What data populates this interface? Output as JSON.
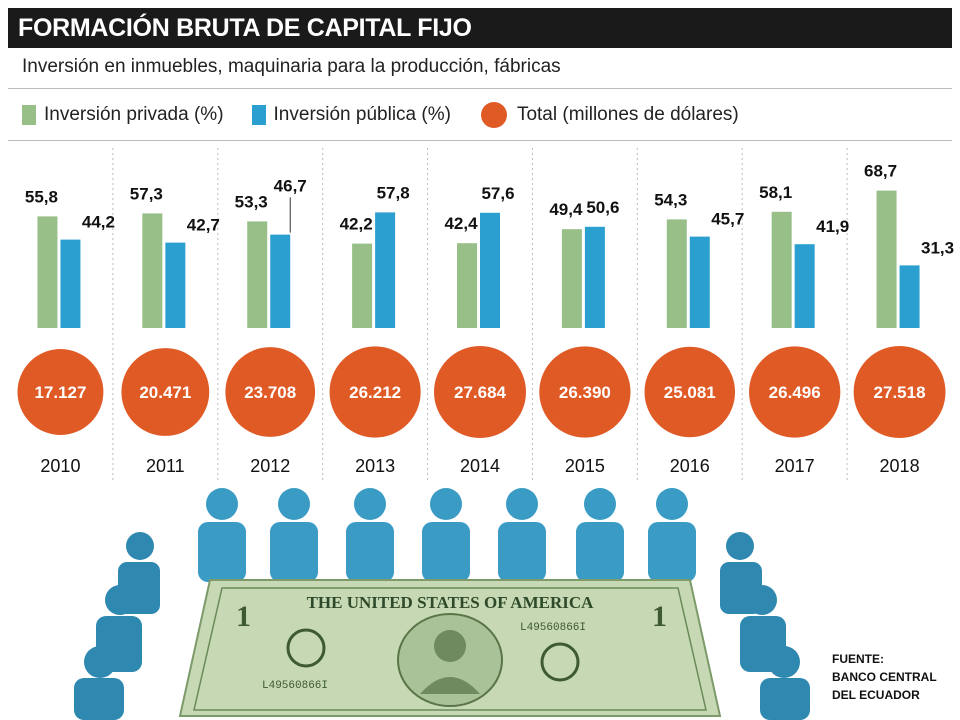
{
  "title": "FORMACIÓN BRUTA DE CAPITAL FIJO",
  "subtitle": "Inversión en inmuebles, maquinaria para la producción, fábricas",
  "legend": {
    "private": "Inversión privada (%)",
    "public": "Inversión pública (%)",
    "total": "Total (millones de dólares)"
  },
  "colors": {
    "private": "#97bf87",
    "public": "#2ba0d0",
    "total": "#e05a26"
  },
  "chart_data": {
    "type": "bar",
    "categories": [
      "2010",
      "2011",
      "2012",
      "2013",
      "2014",
      "2015",
      "2016",
      "2017",
      "2018"
    ],
    "series": [
      {
        "name": "Inversión privada (%)",
        "values": [
          55.8,
          57.3,
          53.3,
          42.2,
          42.4,
          49.4,
          54.3,
          58.1,
          68.7
        ],
        "labels": [
          "55,8",
          "57,3",
          "53,3",
          "42,2",
          "42,4",
          "49,4",
          "54,3",
          "58,1",
          "68,7"
        ]
      },
      {
        "name": "Inversión pública (%)",
        "values": [
          44.2,
          42.7,
          46.7,
          57.8,
          57.6,
          50.6,
          45.7,
          41.9,
          31.3
        ],
        "labels": [
          "44,2",
          "42,7",
          "46,7",
          "57,8",
          "57,6",
          "50,6",
          "45,7",
          "41,9",
          "31,3"
        ]
      },
      {
        "name": "Total (millones de dólares)",
        "values": [
          17127,
          20471,
          23708,
          26212,
          27684,
          26390,
          25081,
          26496,
          27518
        ],
        "labels": [
          "17.127",
          "20.471",
          "23.708",
          "26.212",
          "27.684",
          "26.390",
          "25.081",
          "26.496",
          "27.518"
        ]
      }
    ],
    "ylim": [
      0,
      100
    ],
    "legend_position": "top"
  },
  "illustration": {
    "dollar_text": "THE UNITED STATES OF AMERICA",
    "serial": "L49560866I",
    "denom": "1"
  },
  "source": {
    "label": "FUENTE:",
    "line1": "BANCO CENTRAL",
    "line2": "DEL ECUADOR"
  }
}
